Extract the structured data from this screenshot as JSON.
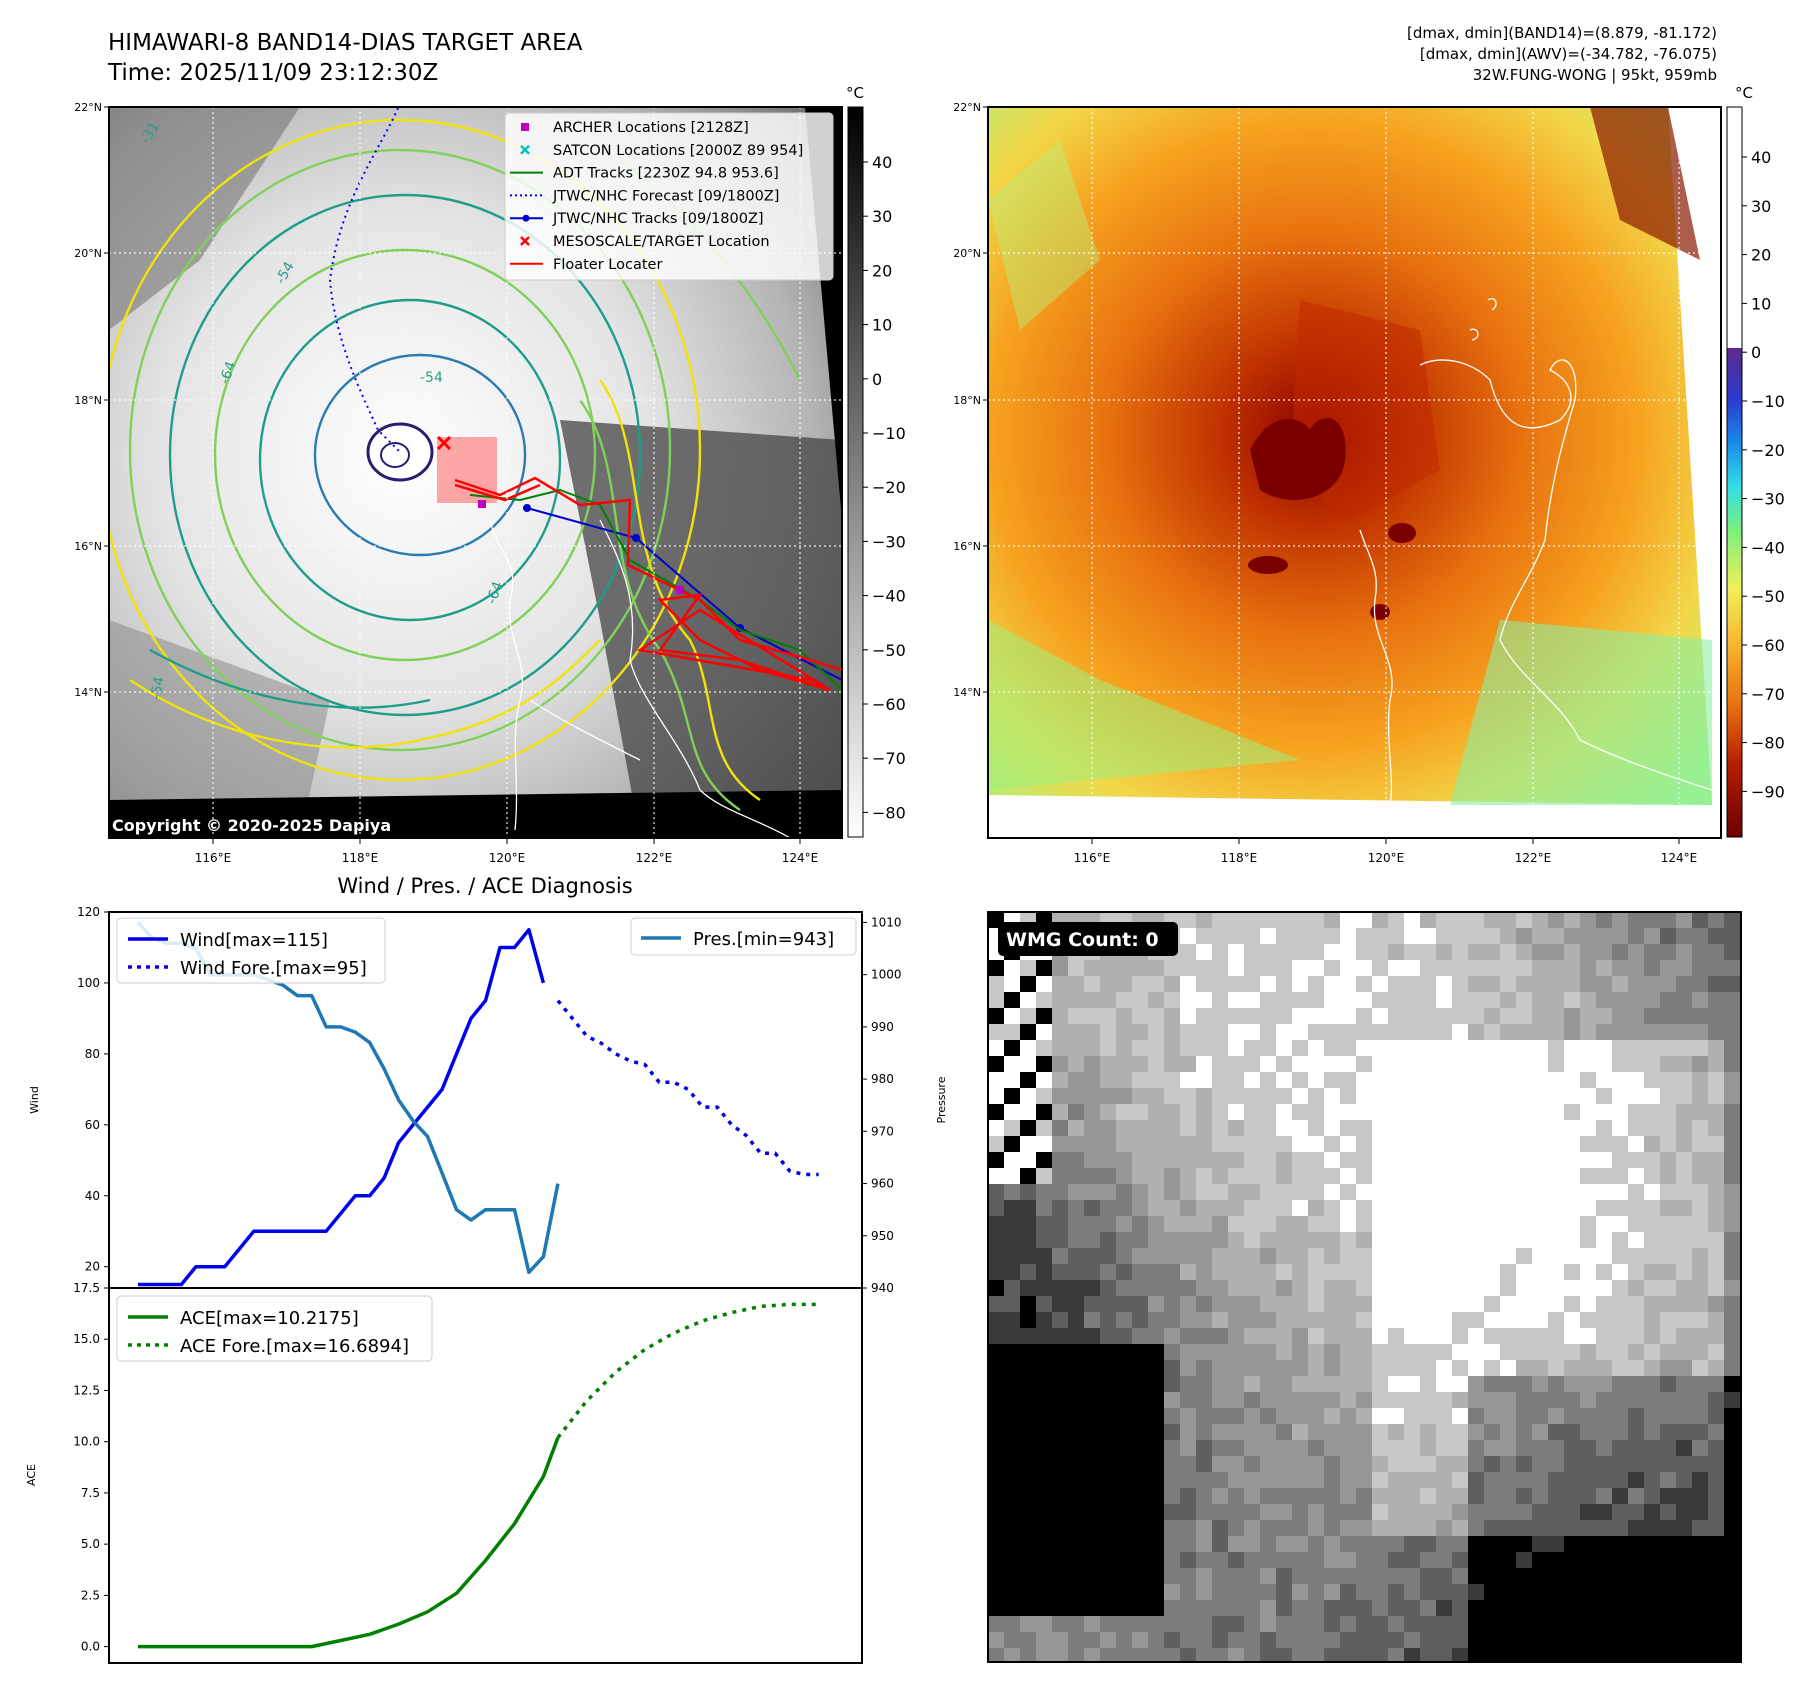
{
  "header": {
    "title_line1": "HIMAWARI-8 BAND14-DIAS TARGET AREA",
    "title_line2": "Time: 2025/11/09 23:12:30Z",
    "stats_line1": "[dmax, dmin](BAND14)=(8.879, -81.172)",
    "stats_line2": "[dmax, dmin](AWV)=(-34.782, -76.075)",
    "stats_line3": "32W.FUNG-WONG | 95kt, 959mb"
  },
  "map_panel": {
    "lat_labels": [
      "22°N",
      "20°N",
      "18°N",
      "16°N",
      "14°N"
    ],
    "lon_labels": [
      "116°E",
      "118°E",
      "120°E",
      "122°E",
      "124°E"
    ],
    "copyright": "Copyright © 2020-2025 Dapiya",
    "colorbar_unit": "°C",
    "colorbar_ticks": [
      "40",
      "30",
      "20",
      "10",
      "0",
      "−10",
      "−20",
      "−30",
      "−40",
      "−50",
      "−60",
      "−70",
      "−80"
    ],
    "contour_labels": [
      "-54",
      "-54",
      "-64",
      "-31",
      "-54",
      "-64"
    ],
    "legend": [
      {
        "label": "ARCHER Locations [2128Z]",
        "color": "#c000c0",
        "marker": "square"
      },
      {
        "label": "SATCON Locations [2000Z 89 954]",
        "color": "#00c0c0",
        "marker": "x"
      },
      {
        "label": "ADT Tracks [2230Z 94.8 953.6]",
        "color": "#008000",
        "marker": "line"
      },
      {
        "label": "JTWC/NHC Forecast [09/1800Z]",
        "color": "#0000ff",
        "marker": "dotted"
      },
      {
        "label": "JTWC/NHC Tracks [09/1800Z]",
        "color": "#0000cc",
        "marker": "line-dot"
      },
      {
        "label": "MESOSCALE/TARGET Location",
        "color": "#ff0000",
        "marker": "x"
      },
      {
        "label": "Floater Locater",
        "color": "#ff0000",
        "marker": "line"
      }
    ]
  },
  "awv_panel": {
    "lat_labels": [
      "22°N",
      "20°N",
      "18°N",
      "16°N",
      "14°N"
    ],
    "lon_labels": [
      "116°E",
      "118°E",
      "120°E",
      "122°E",
      "124°E"
    ],
    "colorbar_unit": "°C",
    "colorbar_ticks": [
      "40",
      "30",
      "20",
      "10",
      "0",
      "−10",
      "−20",
      "−30",
      "−40",
      "−50",
      "−60",
      "−70",
      "−80",
      "−90"
    ]
  },
  "wmg_panel": {
    "label": "WMG Count: 0"
  },
  "chart_data": [
    {
      "type": "line",
      "title": "Wind / Pres. / ACE Diagnosis",
      "ylabel": "Wind",
      "ylim": [
        14,
        120
      ],
      "yticks": [
        "120",
        "100",
        "80",
        "60",
        "40",
        "20"
      ],
      "xlim": [
        -2,
        50
      ],
      "series": [
        {
          "name": "Wind[max=115]",
          "color": "#0000ee",
          "style": "solid",
          "x": [
            0,
            1,
            2,
            3,
            4,
            5,
            6,
            7,
            8,
            9,
            10,
            11,
            12,
            13,
            14,
            15,
            16,
            17,
            18,
            19,
            20,
            21,
            22,
            23,
            24,
            25,
            26,
            27,
            28
          ],
          "y": [
            15,
            15,
            15,
            15,
            20,
            20,
            20,
            25,
            30,
            30,
            30,
            30,
            30,
            30,
            35,
            40,
            40,
            45,
            55,
            60,
            65,
            70,
            80,
            90,
            95,
            110,
            110,
            115,
            100
          ]
        },
        {
          "name": "Wind Fore.[max=95]",
          "color": "#0000ee",
          "style": "dotted",
          "x": [
            29,
            30,
            31,
            32,
            33,
            34,
            35,
            36,
            37,
            38,
            39,
            40,
            41,
            42,
            43,
            44,
            45,
            46,
            47
          ],
          "y": [
            95,
            90,
            85,
            83,
            80,
            78,
            77,
            72,
            72,
            70,
            65,
            65,
            60,
            57,
            52,
            52,
            47,
            46,
            46
          ]
        }
      ]
    },
    {
      "type": "line",
      "ylabel": "Pressure",
      "ylim": [
        940,
        1012
      ],
      "yticks": [
        "1010",
        "1000",
        "990",
        "980",
        "970",
        "960",
        "950",
        "940"
      ],
      "xlim": [
        -2,
        50
      ],
      "series": [
        {
          "name": "Pres.[min=943]",
          "color": "#1f77b4",
          "style": "solid",
          "x": [
            0,
            1,
            2,
            3,
            4,
            5,
            6,
            7,
            8,
            9,
            10,
            11,
            12,
            13,
            14,
            15,
            16,
            17,
            18,
            19,
            20,
            21,
            22,
            23,
            24,
            25,
            26,
            27,
            28,
            29
          ],
          "y": [
            1010,
            1007,
            1006,
            1006,
            1005,
            1000,
            1000,
            1000,
            1000,
            999,
            998,
            996,
            996,
            990,
            990,
            989,
            987,
            982,
            976,
            972,
            969,
            962,
            955,
            953,
            955,
            955,
            955,
            943,
            946,
            960
          ]
        }
      ]
    },
    {
      "type": "line",
      "ylabel": "ACE",
      "ylim": [
        -0.8,
        17.5
      ],
      "yticks": [
        "17.5",
        "15.0",
        "12.5",
        "10.0",
        "7.5",
        "5.0",
        "2.5",
        "0.0"
      ],
      "xlim": [
        -2,
        50
      ],
      "series": [
        {
          "name": "ACE[max=10.2175]",
          "color": "#008000",
          "style": "solid",
          "x": [
            0,
            2,
            4,
            6,
            8,
            10,
            12,
            14,
            16,
            18,
            20,
            22,
            24,
            26,
            28,
            29
          ],
          "y": [
            0,
            0,
            0,
            0,
            0,
            0,
            0,
            0.3,
            0.6,
            1.1,
            1.7,
            2.6,
            4.2,
            6.0,
            8.3,
            10.2
          ]
        },
        {
          "name": "ACE Fore.[max=16.6894]",
          "color": "#008000",
          "style": "dotted",
          "x": [
            29,
            31,
            33,
            35,
            37,
            39,
            41,
            43,
            45,
            47
          ],
          "y": [
            10.2,
            12.0,
            13.4,
            14.5,
            15.3,
            15.9,
            16.3,
            16.6,
            16.7,
            16.7
          ]
        }
      ]
    }
  ]
}
